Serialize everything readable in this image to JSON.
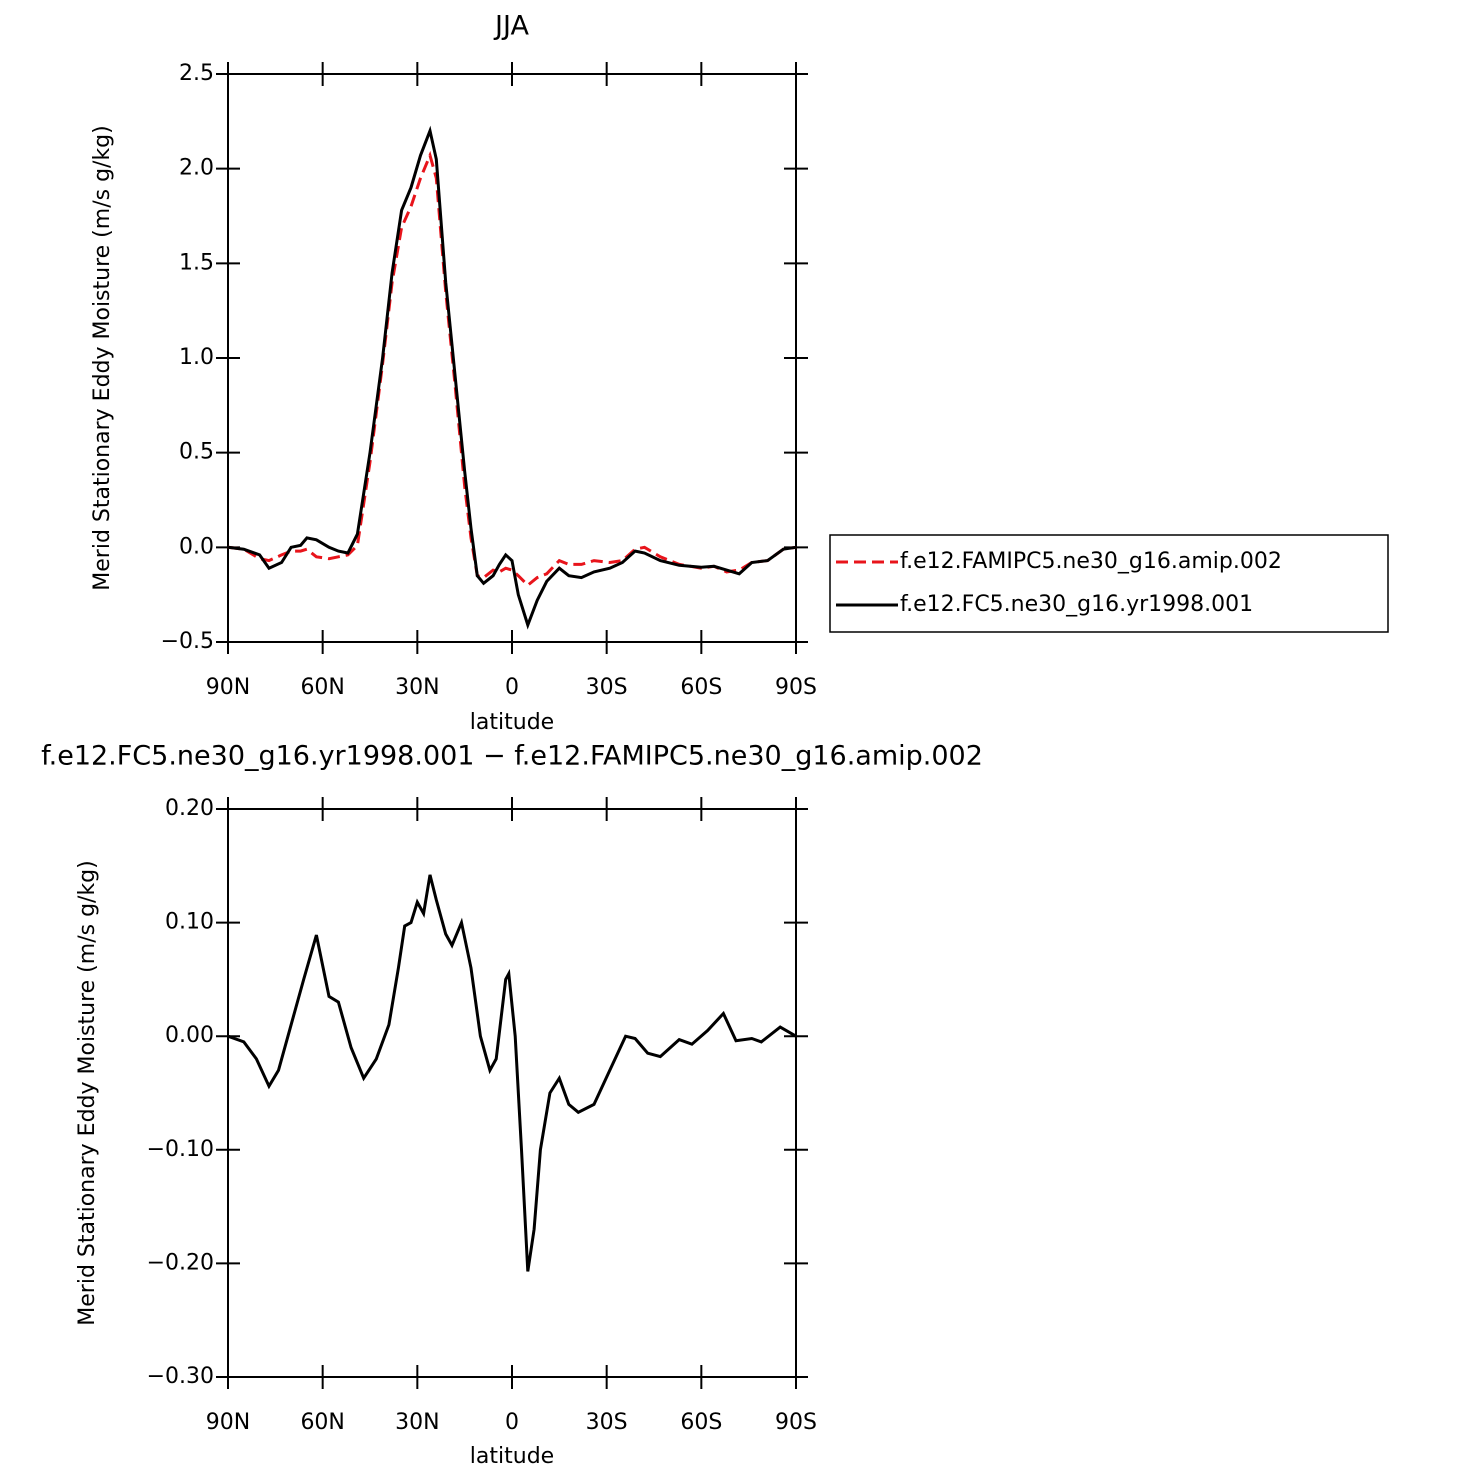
{
  "chart_data": [
    {
      "type": "line",
      "title": "JJA",
      "xlabel": "latitude",
      "ylabel": "Merid Stationary Eddy Moisture (m/s g/kg)",
      "x": [
        90,
        85,
        80,
        77,
        73,
        70,
        67,
        65,
        62,
        58,
        55,
        52,
        49,
        45,
        41,
        38,
        35,
        32,
        29,
        26,
        24,
        21,
        18,
        15,
        13,
        11,
        9,
        6,
        4,
        2,
        0,
        -2,
        -5,
        -8,
        -11,
        -15,
        -18,
        -22,
        -26,
        -31,
        -35,
        -39,
        -42,
        -47,
        -53,
        -60,
        -64,
        -68,
        -72,
        -76,
        -81,
        -86,
        -90
      ],
      "series": [
        {
          "name": "f.e12.FAMIPC5.ne30_g16.amip.002",
          "color": "#e8141b",
          "line_style": "dashed",
          "values": [
            0,
            -0.01,
            -0.06,
            -0.07,
            -0.04,
            -0.02,
            -0.02,
            -0.01,
            -0.05,
            -0.06,
            -0.05,
            -0.04,
            0.01,
            0.45,
            0.97,
            1.4,
            1.69,
            1.8,
            1.95,
            2.07,
            1.95,
            1.35,
            0.85,
            0.32,
            0.05,
            -0.15,
            -0.16,
            -0.12,
            -0.13,
            -0.11,
            -0.12,
            -0.15,
            -0.2,
            -0.16,
            -0.14,
            -0.07,
            -0.09,
            -0.09,
            -0.07,
            -0.08,
            -0.07,
            -0.01,
            0,
            -0.05,
            -0.09,
            -0.11,
            -0.1,
            -0.13,
            -0.12,
            -0.08,
            -0.07,
            -0.01,
            0
          ]
        },
        {
          "name": "f.e12.FC5.ne30_g16.yr1998.001",
          "color": "#000000",
          "line_style": "solid",
          "values": [
            0,
            -0.01,
            -0.04,
            -0.11,
            -0.08,
            0,
            0.01,
            0.05,
            0.04,
            0,
            -0.02,
            -0.03,
            0.07,
            0.5,
            1.0,
            1.45,
            1.78,
            1.9,
            2.07,
            2.2,
            2.05,
            1.4,
            0.9,
            0.4,
            0.1,
            -0.15,
            -0.19,
            -0.15,
            -0.09,
            -0.04,
            -0.07,
            -0.25,
            -0.41,
            -0.28,
            -0.18,
            -0.11,
            -0.15,
            -0.16,
            -0.13,
            -0.11,
            -0.08,
            -0.02,
            -0.03,
            -0.07,
            -0.095,
            -0.105,
            -0.1,
            -0.12,
            -0.14,
            -0.08,
            -0.07,
            -0.01,
            0
          ]
        }
      ],
      "xlim": [
        90,
        -90
      ],
      "xticks": [
        {
          "value": 90,
          "label": "90N"
        },
        {
          "value": 60,
          "label": "60N"
        },
        {
          "value": 30,
          "label": "30N"
        },
        0,
        {
          "value": -30,
          "label": "30S"
        },
        {
          "value": -60,
          "label": "60S"
        },
        {
          "value": -90,
          "label": "90S"
        }
      ],
      "ylim": [
        -0.5,
        2.5
      ],
      "yticks": [
        {
          "value": -0.5,
          "label": "−0.5"
        },
        {
          "value": 0,
          "label": "0.0"
        },
        0.5,
        {
          "value": 1,
          "label": "1.0"
        },
        1.5,
        {
          "value": 2,
          "label": "2.0"
        },
        2.5
      ],
      "legend": "right"
    },
    {
      "type": "line",
      "title": "f.e12.FC5.ne30_g16.yr1998.001 − f.e12.FAMIPC5.ne30_g16.amip.002",
      "xlabel": "latitude",
      "ylabel": "Merid Stationary Eddy Moisture (m/s g/kg)",
      "x": [
        90,
        85,
        81,
        77,
        74,
        70,
        66,
        62,
        58,
        55,
        51,
        47,
        43,
        39,
        36,
        34,
        32,
        30,
        28,
        26,
        24,
        21,
        19,
        16,
        13,
        10,
        7,
        5,
        2,
        1,
        -1,
        -3,
        -5,
        -7,
        -9,
        -12,
        -15,
        -18,
        -21,
        -26,
        -31,
        -36,
        -39,
        -43,
        -47,
        -53,
        -57,
        -62,
        -67,
        -71,
        -76,
        -79,
        -85,
        -90
      ],
      "series": [
        {
          "color": "#000000",
          "line_style": "solid",
          "values": [
            0,
            -0.005,
            -0.02,
            -0.044,
            -0.03,
            0.01,
            0.05,
            0.089,
            0.035,
            0.03,
            -0.01,
            -0.037,
            -0.02,
            0.01,
            0.06,
            0.097,
            0.1,
            0.118,
            0.108,
            0.142,
            0.12,
            0.09,
            0.08,
            0.1,
            0.06,
            0,
            -0.03,
            -0.02,
            0.05,
            0.055,
            0,
            -0.1,
            -0.207,
            -0.17,
            -0.1,
            -0.05,
            -0.037,
            -0.06,
            -0.067,
            -0.06,
            -0.03,
            0,
            -0.002,
            -0.015,
            -0.018,
            -0.003,
            -0.007,
            0.005,
            0.02,
            -0.004,
            -0.002,
            -0.005,
            0.008,
            0
          ]
        }
      ],
      "xlim": [
        90,
        -90
      ],
      "xticks": [
        {
          "value": 90,
          "label": "90N"
        },
        {
          "value": 60,
          "label": "60N"
        },
        {
          "value": 30,
          "label": "30N"
        },
        0,
        {
          "value": -30,
          "label": "30S"
        },
        {
          "value": -60,
          "label": "60S"
        },
        {
          "value": -90,
          "label": "90S"
        }
      ],
      "ylim": [
        -0.3,
        0.2
      ],
      "yticks": [
        {
          "value": -0.3,
          "label": "−0.30"
        },
        {
          "value": -0.2,
          "label": "−0.20"
        },
        {
          "value": -0.1,
          "label": "−0.10"
        },
        {
          "value": 0,
          "label": "0.00"
        },
        {
          "value": 0.1,
          "label": "0.10"
        },
        {
          "value": 0.2,
          "label": "0.20"
        }
      ]
    }
  ]
}
